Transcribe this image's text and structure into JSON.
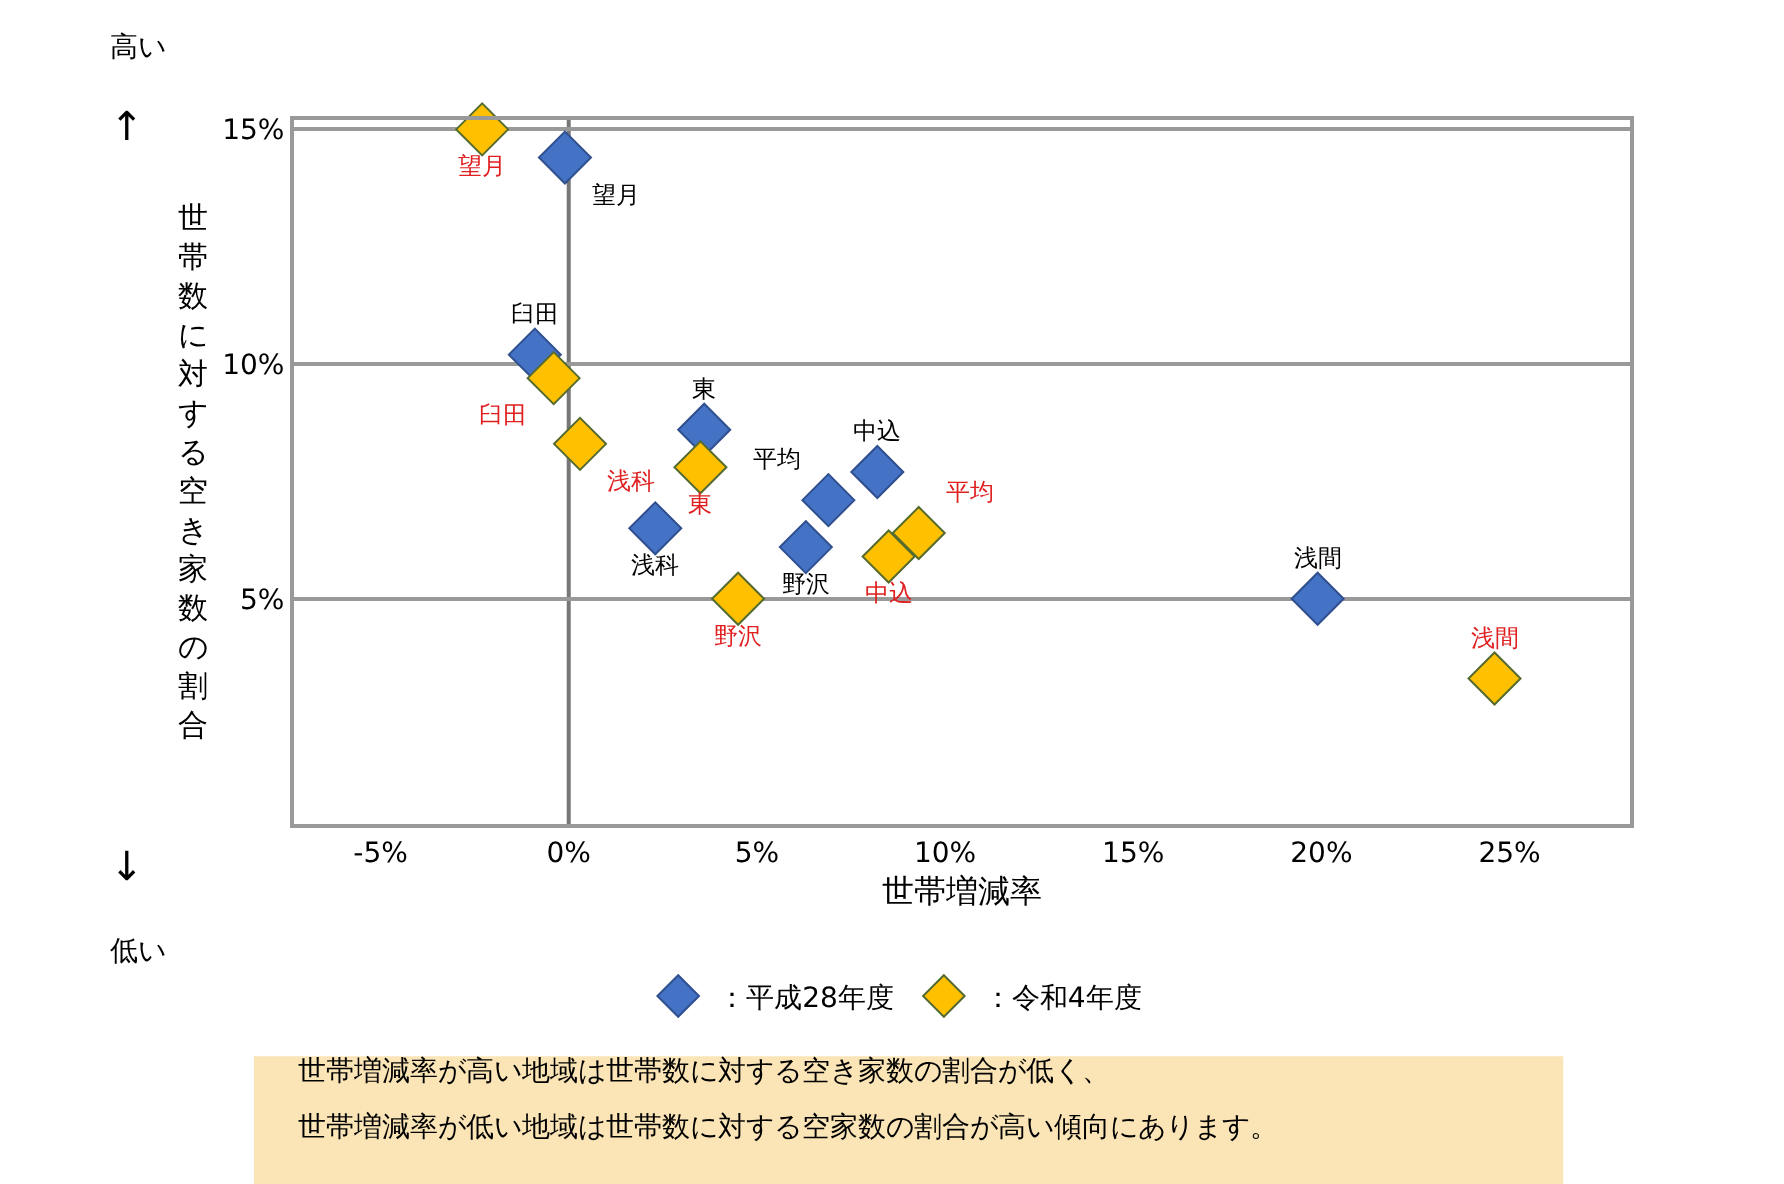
{
  "chart_data": {
    "type": "scatter",
    "xlabel": "世帯増減率",
    "ylabel": "世帯数に対する空き家数の割合",
    "xlim": [
      -7.3,
      28.2
    ],
    "ylim": [
      0.2,
      15.2
    ],
    "xticks": [
      {
        "value": -5,
        "label": "-5%"
      },
      {
        "value": 0,
        "label": "0%"
      },
      {
        "value": 5,
        "label": "5%"
      },
      {
        "value": 10,
        "label": "10%"
      },
      {
        "value": 15,
        "label": "15%"
      },
      {
        "value": 20,
        "label": "20%"
      },
      {
        "value": 25,
        "label": "25%"
      }
    ],
    "yticks": [
      {
        "value": 5,
        "label": "5%"
      },
      {
        "value": 10,
        "label": "10%"
      },
      {
        "value": 15,
        "label": "15%"
      }
    ],
    "grid": "y",
    "marker": "diamond",
    "legend": "bottom",
    "ref_lines": [
      {
        "axis": "x",
        "value": 0,
        "label": null
      }
    ],
    "series": [
      {
        "name": "：平成28年度",
        "color": "#4472c4",
        "x": [
          -0.1,
          -0.9,
          3.6,
          2.3,
          6.9,
          8.2,
          6.3,
          19.9
        ],
        "values": [
          14.4,
          10.2,
          8.6,
          6.5,
          7.1,
          7.7,
          6.1,
          5.0
        ],
        "value_labels": [
          "望月",
          "臼田",
          "東",
          "浅科",
          "平均",
          "中込",
          "野沢",
          "浅間"
        ]
      },
      {
        "name": "：令和4年度",
        "color": "#ffc000",
        "x": [
          -2.3,
          -0.4,
          0.3,
          3.5,
          4.5,
          8.5,
          9.3,
          24.6
        ],
        "values": [
          15.0,
          9.7,
          8.3,
          7.8,
          5.0,
          5.9,
          6.4,
          3.3
        ],
        "value_labels": [
          "望月",
          "臼田",
          "浅科",
          "東",
          "野沢",
          "中込",
          "平均",
          "浅間"
        ]
      }
    ],
    "annotations": [
      "高い",
      "↑",
      "↓",
      "低い",
      "世帯増減率が高い地域は世帯数に対する空き家数の割合が低く、",
      "世帯増減率が低い地域は世帯数に対する空家数の割合が高い傾向にあります。"
    ]
  }
}
